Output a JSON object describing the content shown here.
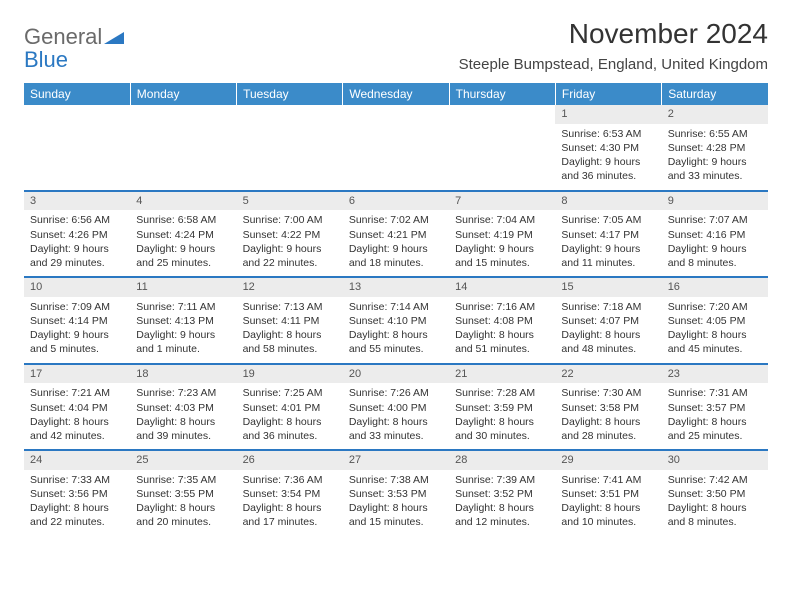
{
  "logo": {
    "text1": "General",
    "text2": "Blue",
    "triangle_color": "#2b78c2"
  },
  "title": "November 2024",
  "location": "Steeple Bumpstead, England, United Kingdom",
  "colors": {
    "header_bg": "#3b8bc9",
    "header_text": "#ffffff",
    "row_border": "#2b78c2",
    "daynum_bg": "#ececec",
    "body_text": "#333333"
  },
  "typography": {
    "title_fontsize": 28,
    "location_fontsize": 15,
    "weekday_fontsize": 12,
    "daynum_fontsize": 11,
    "cell_fontsize": 10.5
  },
  "weekdays": [
    "Sunday",
    "Monday",
    "Tuesday",
    "Wednesday",
    "Thursday",
    "Friday",
    "Saturday"
  ],
  "weeks": [
    [
      {
        "n": "",
        "sr": "",
        "ss": "",
        "dl": ""
      },
      {
        "n": "",
        "sr": "",
        "ss": "",
        "dl": ""
      },
      {
        "n": "",
        "sr": "",
        "ss": "",
        "dl": ""
      },
      {
        "n": "",
        "sr": "",
        "ss": "",
        "dl": ""
      },
      {
        "n": "",
        "sr": "",
        "ss": "",
        "dl": ""
      },
      {
        "n": "1",
        "sr": "Sunrise: 6:53 AM",
        "ss": "Sunset: 4:30 PM",
        "dl": "Daylight: 9 hours and 36 minutes."
      },
      {
        "n": "2",
        "sr": "Sunrise: 6:55 AM",
        "ss": "Sunset: 4:28 PM",
        "dl": "Daylight: 9 hours and 33 minutes."
      }
    ],
    [
      {
        "n": "3",
        "sr": "Sunrise: 6:56 AM",
        "ss": "Sunset: 4:26 PM",
        "dl": "Daylight: 9 hours and 29 minutes."
      },
      {
        "n": "4",
        "sr": "Sunrise: 6:58 AM",
        "ss": "Sunset: 4:24 PM",
        "dl": "Daylight: 9 hours and 25 minutes."
      },
      {
        "n": "5",
        "sr": "Sunrise: 7:00 AM",
        "ss": "Sunset: 4:22 PM",
        "dl": "Daylight: 9 hours and 22 minutes."
      },
      {
        "n": "6",
        "sr": "Sunrise: 7:02 AM",
        "ss": "Sunset: 4:21 PM",
        "dl": "Daylight: 9 hours and 18 minutes."
      },
      {
        "n": "7",
        "sr": "Sunrise: 7:04 AM",
        "ss": "Sunset: 4:19 PM",
        "dl": "Daylight: 9 hours and 15 minutes."
      },
      {
        "n": "8",
        "sr": "Sunrise: 7:05 AM",
        "ss": "Sunset: 4:17 PM",
        "dl": "Daylight: 9 hours and 11 minutes."
      },
      {
        "n": "9",
        "sr": "Sunrise: 7:07 AM",
        "ss": "Sunset: 4:16 PM",
        "dl": "Daylight: 9 hours and 8 minutes."
      }
    ],
    [
      {
        "n": "10",
        "sr": "Sunrise: 7:09 AM",
        "ss": "Sunset: 4:14 PM",
        "dl": "Daylight: 9 hours and 5 minutes."
      },
      {
        "n": "11",
        "sr": "Sunrise: 7:11 AM",
        "ss": "Sunset: 4:13 PM",
        "dl": "Daylight: 9 hours and 1 minute."
      },
      {
        "n": "12",
        "sr": "Sunrise: 7:13 AM",
        "ss": "Sunset: 4:11 PM",
        "dl": "Daylight: 8 hours and 58 minutes."
      },
      {
        "n": "13",
        "sr": "Sunrise: 7:14 AM",
        "ss": "Sunset: 4:10 PM",
        "dl": "Daylight: 8 hours and 55 minutes."
      },
      {
        "n": "14",
        "sr": "Sunrise: 7:16 AM",
        "ss": "Sunset: 4:08 PM",
        "dl": "Daylight: 8 hours and 51 minutes."
      },
      {
        "n": "15",
        "sr": "Sunrise: 7:18 AM",
        "ss": "Sunset: 4:07 PM",
        "dl": "Daylight: 8 hours and 48 minutes."
      },
      {
        "n": "16",
        "sr": "Sunrise: 7:20 AM",
        "ss": "Sunset: 4:05 PM",
        "dl": "Daylight: 8 hours and 45 minutes."
      }
    ],
    [
      {
        "n": "17",
        "sr": "Sunrise: 7:21 AM",
        "ss": "Sunset: 4:04 PM",
        "dl": "Daylight: 8 hours and 42 minutes."
      },
      {
        "n": "18",
        "sr": "Sunrise: 7:23 AM",
        "ss": "Sunset: 4:03 PM",
        "dl": "Daylight: 8 hours and 39 minutes."
      },
      {
        "n": "19",
        "sr": "Sunrise: 7:25 AM",
        "ss": "Sunset: 4:01 PM",
        "dl": "Daylight: 8 hours and 36 minutes."
      },
      {
        "n": "20",
        "sr": "Sunrise: 7:26 AM",
        "ss": "Sunset: 4:00 PM",
        "dl": "Daylight: 8 hours and 33 minutes."
      },
      {
        "n": "21",
        "sr": "Sunrise: 7:28 AM",
        "ss": "Sunset: 3:59 PM",
        "dl": "Daylight: 8 hours and 30 minutes."
      },
      {
        "n": "22",
        "sr": "Sunrise: 7:30 AM",
        "ss": "Sunset: 3:58 PM",
        "dl": "Daylight: 8 hours and 28 minutes."
      },
      {
        "n": "23",
        "sr": "Sunrise: 7:31 AM",
        "ss": "Sunset: 3:57 PM",
        "dl": "Daylight: 8 hours and 25 minutes."
      }
    ],
    [
      {
        "n": "24",
        "sr": "Sunrise: 7:33 AM",
        "ss": "Sunset: 3:56 PM",
        "dl": "Daylight: 8 hours and 22 minutes."
      },
      {
        "n": "25",
        "sr": "Sunrise: 7:35 AM",
        "ss": "Sunset: 3:55 PM",
        "dl": "Daylight: 8 hours and 20 minutes."
      },
      {
        "n": "26",
        "sr": "Sunrise: 7:36 AM",
        "ss": "Sunset: 3:54 PM",
        "dl": "Daylight: 8 hours and 17 minutes."
      },
      {
        "n": "27",
        "sr": "Sunrise: 7:38 AM",
        "ss": "Sunset: 3:53 PM",
        "dl": "Daylight: 8 hours and 15 minutes."
      },
      {
        "n": "28",
        "sr": "Sunrise: 7:39 AM",
        "ss": "Sunset: 3:52 PM",
        "dl": "Daylight: 8 hours and 12 minutes."
      },
      {
        "n": "29",
        "sr": "Sunrise: 7:41 AM",
        "ss": "Sunset: 3:51 PM",
        "dl": "Daylight: 8 hours and 10 minutes."
      },
      {
        "n": "30",
        "sr": "Sunrise: 7:42 AM",
        "ss": "Sunset: 3:50 PM",
        "dl": "Daylight: 8 hours and 8 minutes."
      }
    ]
  ]
}
